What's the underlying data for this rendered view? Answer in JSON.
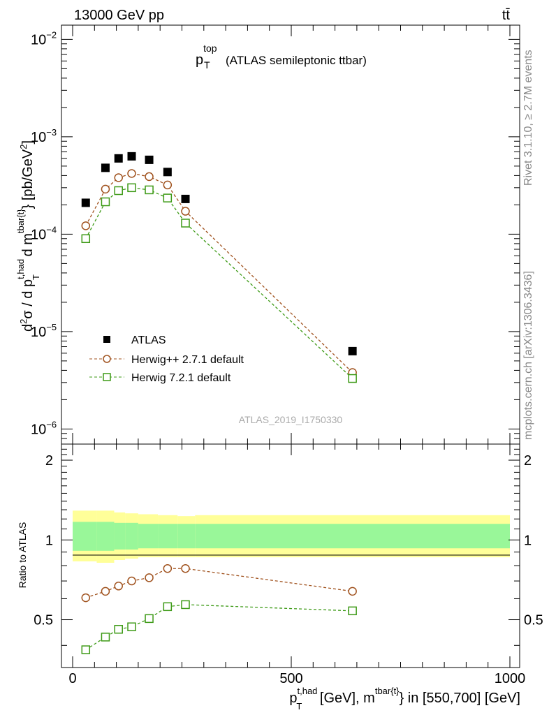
{
  "header": {
    "energy_label": "13000 GeV pp",
    "process_label": "tt̄"
  },
  "side_labels": {
    "rivet": "Rivet 3.1.10, ≥ 2.7M events",
    "mcplots": "mcplots.cern.ch [arXiv:1306.3436]"
  },
  "chart_data": [
    {
      "type": "scatter",
      "title": "p_T^top (ATLAS semileptonic ttbar)",
      "title_main": "p",
      "title_sup": "top",
      "title_sub": "T",
      "title_rest": "(ATLAS semileptonic ttbar)",
      "ylabel": "d²σ / d p_T^{t,had} d m^{tbar{t}} [pb/GeV²]",
      "y_scale": "log",
      "ylim": [
        7e-07,
        0.014
      ],
      "xlim": [
        -20,
        1000
      ],
      "y_ticks": [
        {
          "value": 1e-06,
          "label": "10",
          "exp": "−6"
        },
        {
          "value": 1e-05,
          "label": "10",
          "exp": "−5"
        },
        {
          "value": 0.0001,
          "label": "10",
          "exp": "−4"
        },
        {
          "value": 0.001,
          "label": "10",
          "exp": "−3"
        },
        {
          "value": 0.01,
          "label": "10",
          "exp": "−2"
        }
      ],
      "watermark": "ATLAS_2019_I1750330",
      "legend_position": "bottom-left",
      "series": [
        {
          "name": "ATLAS",
          "color": "#000000",
          "marker": "filled-square",
          "x": [
            30,
            75,
            105,
            135,
            175,
            217,
            258,
            640
          ],
          "y": [
            0.00021,
            0.00048,
            0.0006,
            0.00063,
            0.00058,
            0.000435,
            0.00023,
            6.3e-06
          ]
        },
        {
          "name": "Herwig++ 2.7.1 default",
          "color": "#a0521e",
          "marker": "open-circle",
          "x": [
            30,
            75,
            105,
            135,
            175,
            217,
            258,
            640
          ],
          "y": [
            0.000122,
            0.00029,
            0.00038,
            0.00042,
            0.00039,
            0.00032,
            0.000172,
            3.8e-06
          ]
        },
        {
          "name": "Herwig 7.2.1 default",
          "color": "#3d9a16",
          "marker": "open-square",
          "x": [
            30,
            75,
            105,
            135,
            175,
            217,
            258,
            640
          ],
          "y": [
            9e-05,
            0.000215,
            0.00028,
            0.0003,
            0.000285,
            0.000235,
            0.00013,
            3.3e-06
          ]
        }
      ]
    },
    {
      "type": "line",
      "ylabel": "Ratio to ATLAS",
      "xlabel": "p_T^{t,had} [GeV], m^{tbar{t}} in [550,700] [GeV]",
      "xlim": [
        -20,
        1000
      ],
      "ylim": [
        0.33,
        2.3
      ],
      "x_ticks": [
        0,
        500,
        1000
      ],
      "y_ticks": [
        0.5,
        1,
        2
      ],
      "bands": {
        "edges": [
          0,
          55,
          95,
          120,
          150,
          195,
          240,
          280,
          1000
        ],
        "yellow_low": [
          0.83,
          0.82,
          0.84,
          0.85,
          0.86,
          0.86,
          0.86,
          0.86
        ],
        "yellow_high": [
          1.29,
          1.29,
          1.27,
          1.26,
          1.25,
          1.24,
          1.23,
          1.24
        ],
        "green_low": [
          0.91,
          0.91,
          0.92,
          0.92,
          0.93,
          0.93,
          0.93,
          0.93
        ],
        "green_high": [
          1.17,
          1.17,
          1.16,
          1.16,
          1.15,
          1.15,
          1.15,
          1.15
        ]
      },
      "series": [
        {
          "name": "Herwig++ 2.7.1 default",
          "color": "#a0521e",
          "marker": "open-circle",
          "x": [
            30,
            75,
            105,
            135,
            175,
            217,
            258,
            640
          ],
          "y": [
            0.605,
            0.64,
            0.67,
            0.7,
            0.72,
            0.78,
            0.78,
            0.64
          ]
        },
        {
          "name": "Herwig 7.2.1 default",
          "color": "#3d9a16",
          "marker": "open-square",
          "x": [
            30,
            75,
            105,
            135,
            175,
            217,
            258,
            640
          ],
          "y": [
            0.385,
            0.43,
            0.46,
            0.47,
            0.505,
            0.56,
            0.57,
            0.54
          ]
        }
      ]
    }
  ]
}
